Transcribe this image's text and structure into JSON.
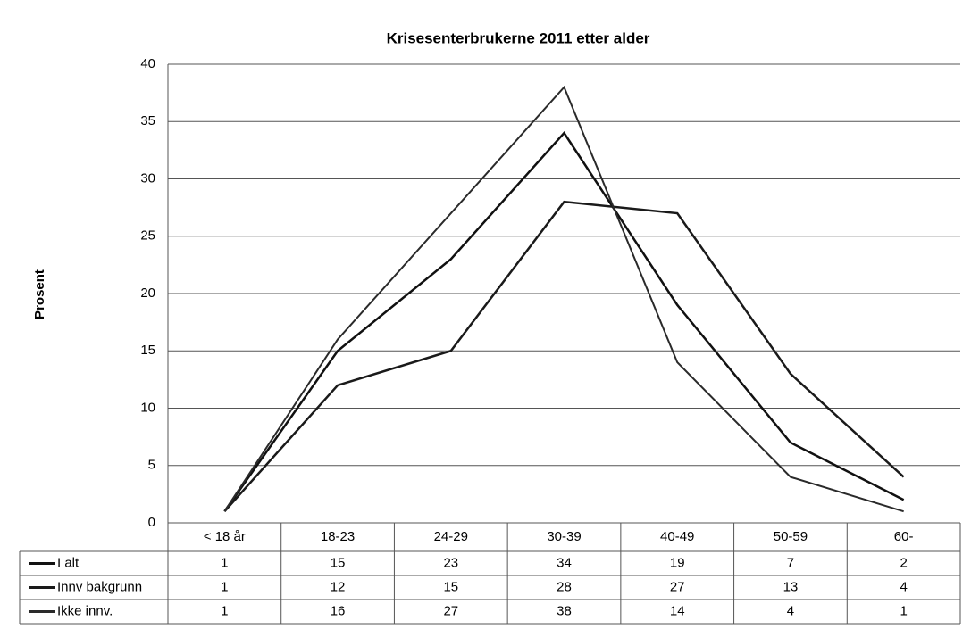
{
  "chart_data": {
    "type": "line",
    "title": "Krisesenterbrukerne 2011 etter alder",
    "y_label": "Prosent",
    "categories": [
      "< 18 år",
      "18-23",
      "24-29",
      "30-39",
      "40-49",
      "50-59",
      "60-"
    ],
    "series": [
      {
        "name": "I alt",
        "color": "#111111",
        "values": [
          1,
          15,
          23,
          34,
          19,
          7,
          2
        ]
      },
      {
        "name": "Innv bakgrunn",
        "color": "#1a1a1a",
        "values": [
          1,
          12,
          15,
          28,
          27,
          13,
          4
        ]
      },
      {
        "name": "Ikke innv.",
        "color": "#2a2a2a",
        "values": [
          1,
          16,
          27,
          38,
          14,
          4,
          1
        ]
      }
    ],
    "ylim": [
      0,
      40
    ],
    "yticks": [
      0,
      5,
      10,
      15,
      20,
      25,
      30,
      35,
      40
    ],
    "grid": true,
    "data_table": true
  }
}
